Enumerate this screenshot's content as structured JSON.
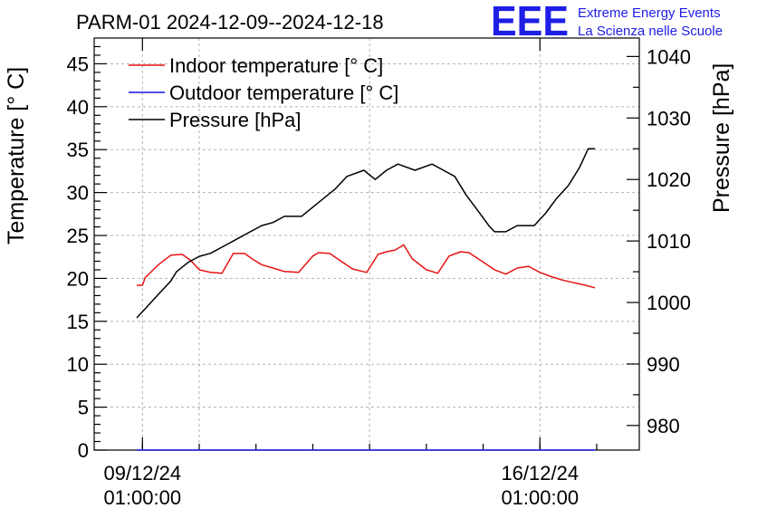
{
  "chart_data": {
    "type": "line",
    "title": "PARM-01 2024-12-09--2024-12-18",
    "ylabel_left": "Temperature [° C]",
    "ylabel_right": "Pressure [hPa]",
    "x_tick_labels": [
      {
        "date": "09/12/24",
        "time": "01:00:00",
        "day": 0
      },
      {
        "date": "16/12/24",
        "time": "01:00:00",
        "day": 7
      }
    ],
    "xlim_days": [
      -0.85,
      8.75
    ],
    "ylim_left": [
      0,
      48
    ],
    "ylim_right": [
      976,
      1043
    ],
    "yticks_left": [
      0,
      5,
      10,
      15,
      20,
      25,
      30,
      35,
      40,
      45
    ],
    "yticks_right": [
      980,
      990,
      1000,
      1010,
      1020,
      1030,
      1040
    ],
    "grid": true,
    "legend_position": "top-left",
    "colors": {
      "indoor": "#e61414",
      "outdoor": "#1414e6",
      "pressure": "#000000"
    },
    "series": [
      {
        "name": "Indoor temperature [° C]",
        "axis": "left",
        "color": "#e61414",
        "x": [
          -0.1,
          0.0,
          0.05,
          0.3,
          0.5,
          0.7,
          0.85,
          1.0,
          1.2,
          1.4,
          1.6,
          1.8,
          1.95,
          2.1,
          2.3,
          2.5,
          2.75,
          3.0,
          3.1,
          3.3,
          3.5,
          3.7,
          3.95,
          4.15,
          4.3,
          4.45,
          4.6,
          4.75,
          5.0,
          5.2,
          5.4,
          5.6,
          5.75,
          6.0,
          6.2,
          6.4,
          6.6,
          6.8,
          7.0,
          7.2,
          7.4,
          7.6,
          7.8,
          7.97
        ],
        "values": [
          19.2,
          19.2,
          20.1,
          21.7,
          22.7,
          22.8,
          22.1,
          21.0,
          20.7,
          20.6,
          22.9,
          22.9,
          22.2,
          21.6,
          21.2,
          20.8,
          20.7,
          22.6,
          23.0,
          22.9,
          22.0,
          21.1,
          20.7,
          22.8,
          23.1,
          23.3,
          23.9,
          22.3,
          21.0,
          20.6,
          22.6,
          23.1,
          23.0,
          21.9,
          21.0,
          20.5,
          21.2,
          21.4,
          20.7,
          20.2,
          19.8,
          19.5,
          19.2,
          18.9
        ]
      },
      {
        "name": "Outdoor temperature [° C]",
        "axis": "left",
        "color": "#1414e6",
        "x": [
          -0.1,
          7.97
        ],
        "values": [
          0,
          0
        ]
      },
      {
        "name": "Pressure [hPa]",
        "axis": "right",
        "color": "#000000",
        "x": [
          -0.1,
          0.0,
          0.1,
          0.2,
          0.3,
          0.4,
          0.5,
          0.6,
          0.8,
          1.0,
          1.2,
          1.5,
          1.7,
          1.9,
          2.1,
          2.3,
          2.5,
          2.8,
          3.0,
          3.2,
          3.4,
          3.6,
          3.9,
          4.1,
          4.3,
          4.5,
          4.8,
          5.1,
          5.3,
          5.5,
          5.7,
          5.9,
          6.1,
          6.2,
          6.4,
          6.6,
          6.9,
          7.1,
          7.3,
          7.5,
          7.7,
          7.85,
          7.97
        ],
        "values": [
          997.5,
          998.5,
          999.5,
          1000.5,
          1001.5,
          1002.5,
          1003.5,
          1005.0,
          1006.5,
          1007.5,
          1008.0,
          1009.5,
          1010.5,
          1011.5,
          1012.5,
          1013.0,
          1014.0,
          1014.0,
          1015.5,
          1017.0,
          1018.5,
          1020.5,
          1021.5,
          1020.0,
          1021.5,
          1022.5,
          1021.5,
          1022.5,
          1021.5,
          1020.5,
          1017.5,
          1015.0,
          1012.5,
          1011.5,
          1011.5,
          1012.5,
          1012.5,
          1014.5,
          1017.0,
          1019.0,
          1022.0,
          1025.0,
          1025.0
        ]
      }
    ]
  },
  "logo": {
    "text": "EEE",
    "line1": "Extreme Energy Events",
    "line2": "La Scienza nelle Scuole"
  }
}
